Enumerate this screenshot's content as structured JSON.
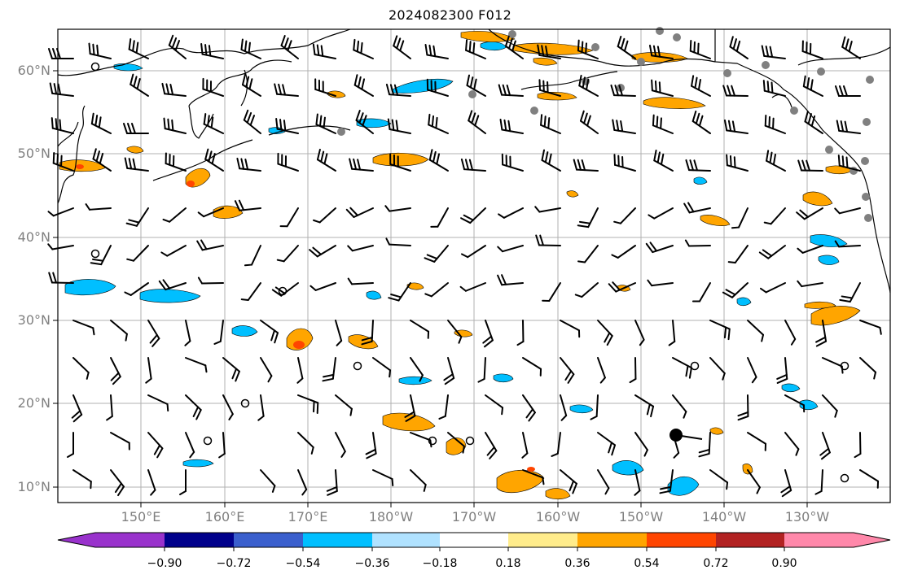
{
  "title": "2024082300 F012",
  "latitude_labels": [
    "60°N",
    "50°N",
    "40°N",
    "30°N",
    "20°N",
    "10°N"
  ],
  "longitude_labels": [
    "150°E",
    "160°E",
    "170°E",
    "180°W",
    "170°W",
    "160°W",
    "150°W",
    "140°W",
    "130°W"
  ],
  "colorbar": {
    "tick_labels": [
      "−0.90",
      "−0.72",
      "−0.54",
      "−0.36",
      "−0.18",
      "0.18",
      "0.36",
      "0.54",
      "0.72",
      "0.90"
    ],
    "colors": [
      "#9932cc",
      "#00008b",
      "#3a5fcd",
      "#00bfff",
      "#b0e2ff",
      "#ffffff",
      "#ffec8b",
      "#ffa500",
      "#ff4500",
      "#b22222",
      "#ff88aa"
    ]
  },
  "colors": {
    "grid": "#b0b0b0",
    "coast": "#000000",
    "station_marker": "#808080",
    "negative_fill": "#00bfff",
    "positive_fill": "#ffa500"
  }
}
